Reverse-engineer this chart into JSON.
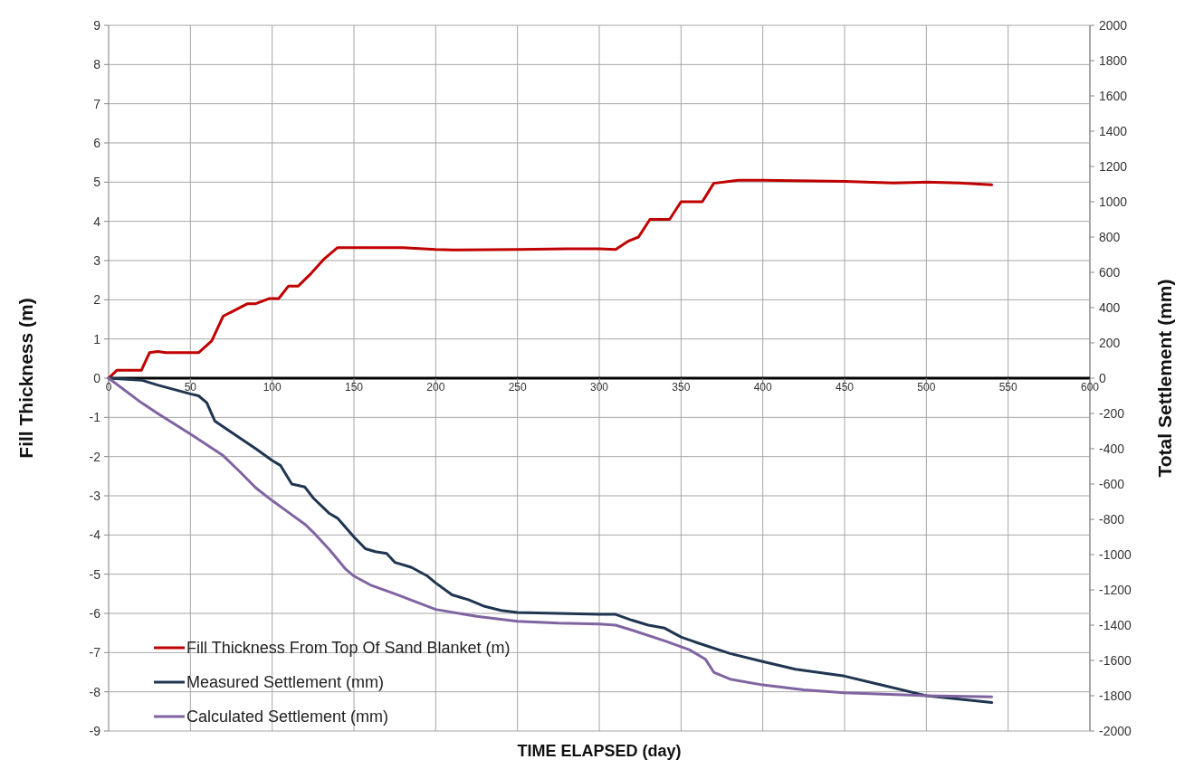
{
  "chart_data": {
    "type": "line",
    "xlabel": "TIME ELAPSED  (day)",
    "ylabel": "Fill Thickness (m)",
    "y2label": "Total Settlement (mm)",
    "xlim": [
      0,
      600
    ],
    "xticks": [
      0,
      50,
      100,
      150,
      200,
      250,
      300,
      350,
      400,
      450,
      500,
      550,
      600
    ],
    "ylim": [
      -9,
      9
    ],
    "yticks": [
      -9,
      -8,
      -7,
      -6,
      -5,
      -4,
      -3,
      -2,
      -1,
      0,
      1,
      2,
      3,
      4,
      5,
      6,
      7,
      8,
      9
    ],
    "y2lim": [
      -2000,
      2000
    ],
    "y2ticks": [
      -2000,
      -1800,
      -1600,
      -1400,
      -1200,
      -1000,
      -800,
      -600,
      -400,
      -200,
      0,
      200,
      400,
      600,
      800,
      1000,
      1200,
      1400,
      1600,
      1800,
      2000
    ],
    "grid": true,
    "legend": "bottom left",
    "line_style": "solid",
    "marker": "none",
    "series": [
      {
        "name": "Fill Thickness From Top Of Sand Blanket (m)",
        "color": "#c00000",
        "x": [
          0,
          5,
          20,
          25,
          30,
          35,
          55,
          63,
          70,
          78,
          85,
          90,
          98,
          104,
          110,
          116,
          124,
          132,
          140,
          160,
          180,
          200,
          210,
          250,
          280,
          300,
          310,
          318,
          324,
          331,
          343,
          350,
          363,
          370,
          385,
          400,
          450,
          480,
          500,
          520,
          540
        ],
        "values": [
          0,
          0.2,
          0.2,
          0.65,
          0.68,
          0.65,
          0.65,
          0.95,
          1.58,
          1.75,
          1.9,
          1.9,
          2.03,
          2.03,
          2.35,
          2.35,
          2.68,
          3.05,
          3.33,
          3.33,
          3.33,
          3.28,
          3.27,
          3.28,
          3.3,
          3.3,
          3.28,
          3.5,
          3.6,
          4.05,
          4.05,
          4.5,
          4.5,
          4.97,
          5.05,
          5.05,
          5.02,
          4.98,
          5.0,
          4.98,
          4.93
        ]
      },
      {
        "name": "Measured Settlement (mm)",
        "color": "#1f3550",
        "axis": "y2",
        "x": [
          0,
          20,
          30,
          50,
          55,
          60,
          65,
          75,
          90,
          100,
          105,
          112,
          120,
          125,
          135,
          140,
          150,
          157,
          163,
          170,
          175,
          185,
          195,
          200,
          210,
          220,
          230,
          240,
          250,
          275,
          300,
          310,
          320,
          330,
          340,
          350,
          360,
          380,
          400,
          420,
          450,
          470,
          500,
          540
        ],
        "values": [
          0,
          -11,
          -39,
          -89,
          -100,
          -139,
          -244,
          -306,
          -400,
          -467,
          -494,
          -600,
          -617,
          -678,
          -767,
          -794,
          -900,
          -967,
          -983,
          -994,
          -1044,
          -1072,
          -1122,
          -1161,
          -1228,
          -1256,
          -1294,
          -1317,
          -1328,
          -1333,
          -1339,
          -1339,
          -1372,
          -1400,
          -1417,
          -1467,
          -1500,
          -1561,
          -1606,
          -1650,
          -1689,
          -1733,
          -1800,
          -1839
        ]
      },
      {
        "name": "Calculated Settlement (mm)",
        "color": "#8064a2",
        "axis": "y2",
        "x": [
          0,
          20,
          30,
          50,
          70,
          80,
          90,
          100,
          110,
          120,
          125,
          135,
          145,
          150,
          160,
          175,
          200,
          225,
          250,
          275,
          300,
          310,
          320,
          340,
          355,
          365,
          370,
          380,
          400,
          425,
          450,
          500,
          540
        ],
        "values": [
          0,
          -139,
          -200,
          -317,
          -439,
          -528,
          -622,
          -694,
          -761,
          -828,
          -872,
          -972,
          -1083,
          -1122,
          -1172,
          -1222,
          -1311,
          -1350,
          -1378,
          -1389,
          -1394,
          -1400,
          -1428,
          -1489,
          -1539,
          -1594,
          -1667,
          -1706,
          -1739,
          -1767,
          -1783,
          -1800,
          -1806
        ]
      }
    ]
  }
}
